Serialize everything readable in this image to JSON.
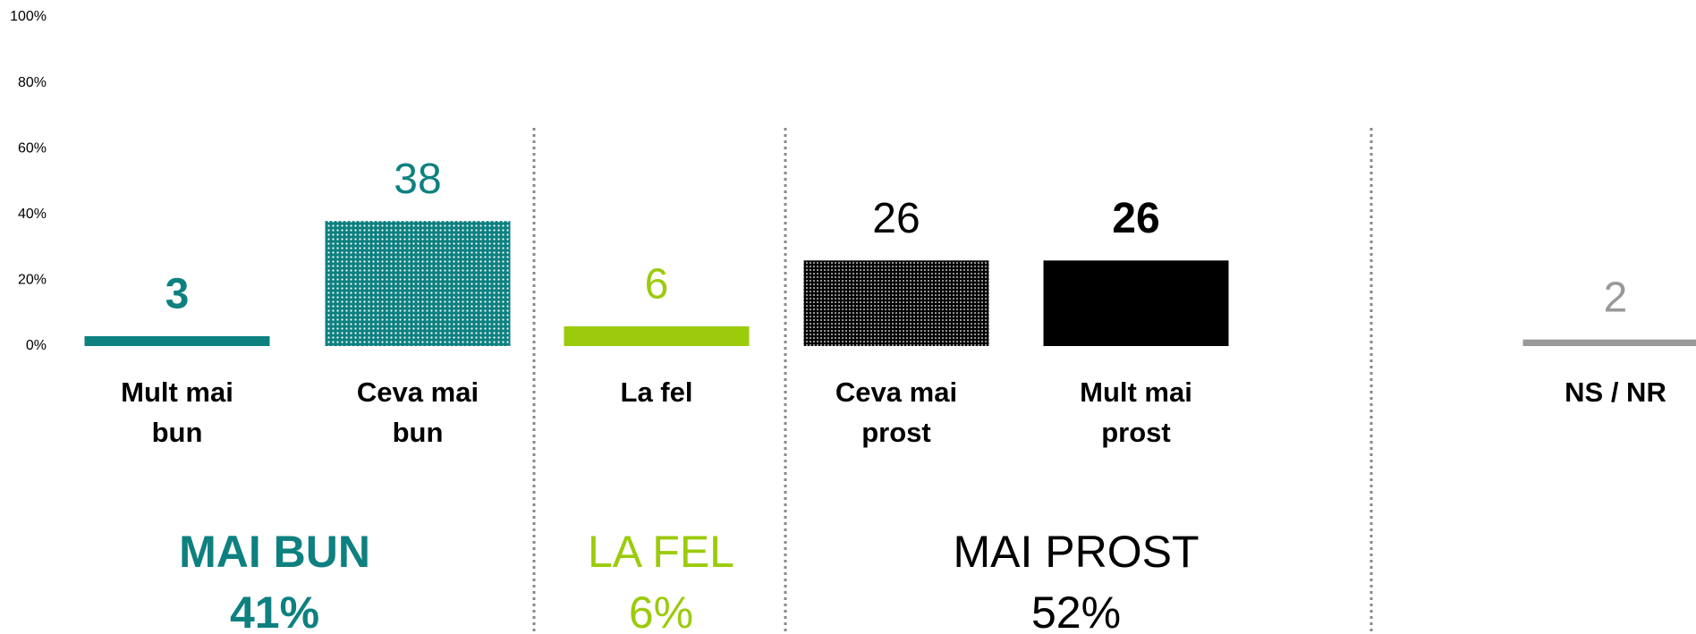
{
  "chart_data": {
    "type": "bar",
    "categories": [
      "Mult mai bun",
      "Ceva mai bun",
      "La fel",
      "Ceva mai prost",
      "Mult mai prost",
      "NS / NR"
    ],
    "values": [
      3,
      38,
      6,
      26,
      26,
      2
    ],
    "colors": [
      "#0e8080",
      "#0e8080",
      "#9bcb0b",
      "#000000",
      "#000000",
      "#999999"
    ],
    "patterns": [
      "solid",
      "dots-light",
      "solid",
      "dots-dark",
      "solid",
      "solid"
    ],
    "value_label_bold": [
      true,
      false,
      false,
      false,
      true,
      false
    ],
    "ylim": [
      0,
      100
    ],
    "yticks": [
      {
        "value": 0,
        "label": "0%"
      },
      {
        "value": 20,
        "label": "20%"
      },
      {
        "value": 40,
        "label": "40%"
      },
      {
        "value": 60,
        "label": "60%"
      },
      {
        "value": 80,
        "label": "80%"
      },
      {
        "value": 100,
        "label": "100%"
      }
    ],
    "groups": [
      {
        "name": "MAI BUN",
        "total": "41%",
        "color": "#0e8080",
        "bold": true
      },
      {
        "name": "LA FEL",
        "total": "6%",
        "color": "#9bcb0b",
        "bold": false
      },
      {
        "name": "MAI PROST",
        "total": "52%",
        "color": "#000000",
        "bold": false
      }
    ]
  }
}
